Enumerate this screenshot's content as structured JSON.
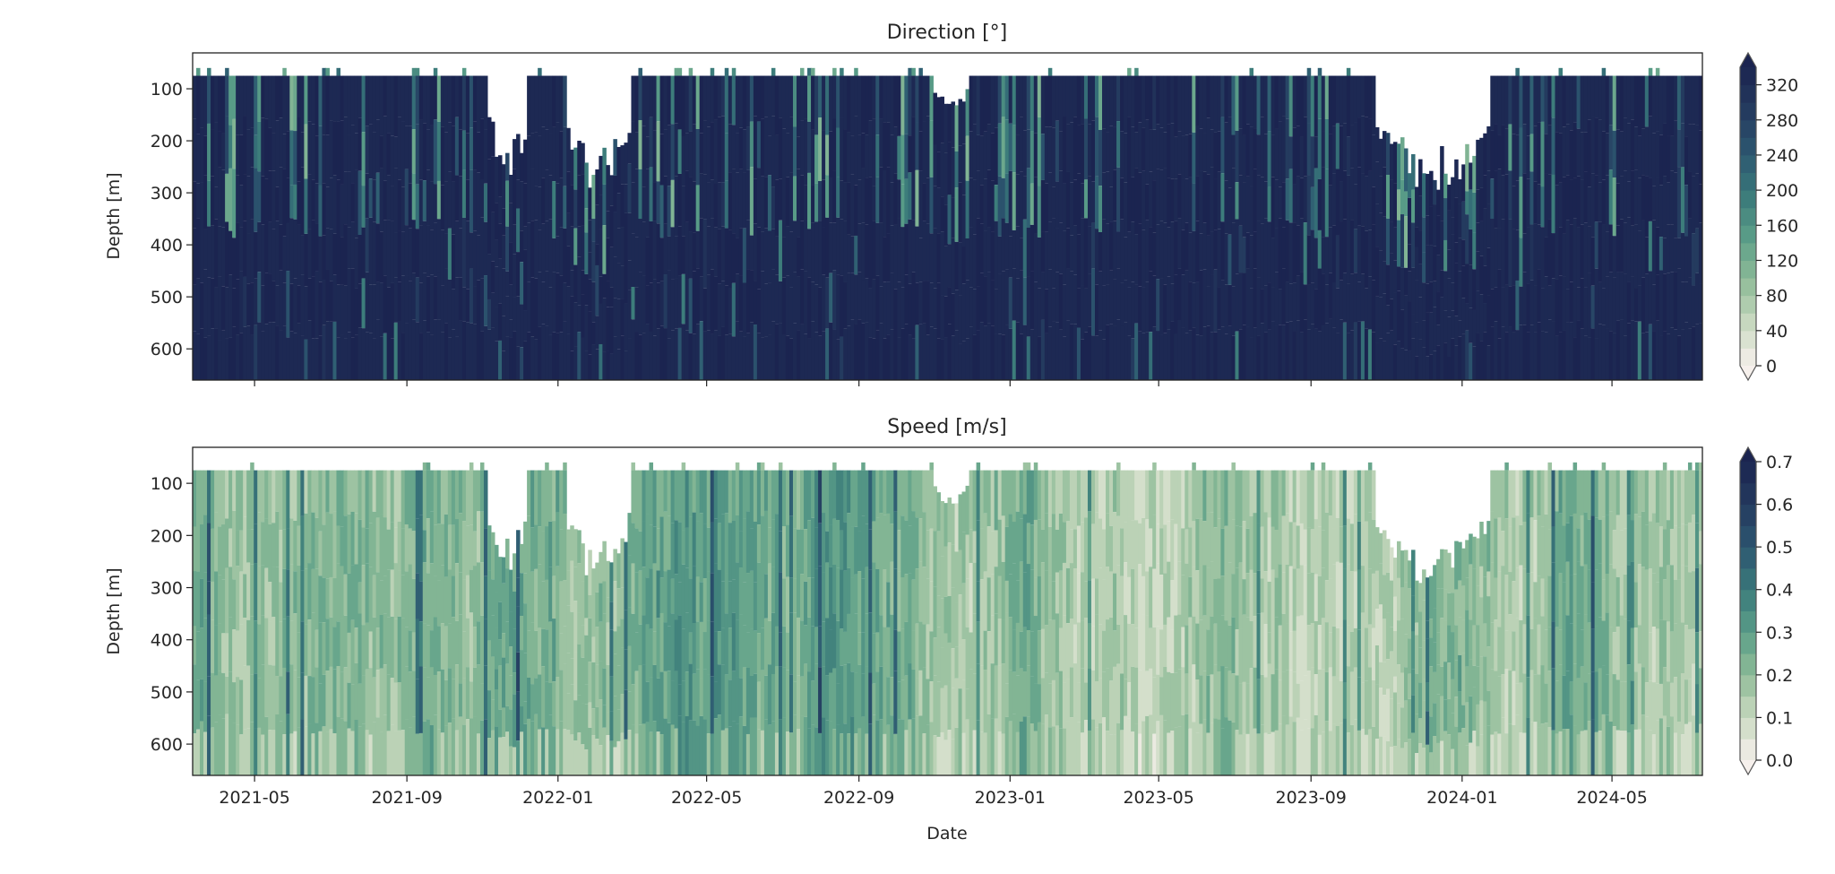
{
  "chart_data": [
    {
      "type": "heatmap",
      "title": "Direction [°]",
      "ylabel": "Depth [m]",
      "xlabel": "",
      "xlim": [
        "2021-03-12",
        "2024-07-13"
      ],
      "ylim": [
        660,
        31
      ],
      "y_inverted": true,
      "xticks": [
        "2021-05",
        "2021-09",
        "2022-01",
        "2022-05",
        "2022-09",
        "2023-01",
        "2023-05",
        "2023-09",
        "2024-01",
        "2024-05"
      ],
      "xtick_labels_shown": false,
      "yticks": [
        100,
        200,
        300,
        400,
        500,
        600
      ],
      "colorbar": {
        "ticks": [
          0,
          40,
          80,
          120,
          160,
          200,
          240,
          280,
          320
        ],
        "levels_min": 0,
        "levels_max": 340,
        "level_step": 20,
        "extend": "both",
        "colormap": [
          "#f6f0ec",
          "#c9d9c0",
          "#8fbc98",
          "#5b9e88",
          "#3a7a7a",
          "#2c5670",
          "#243a5e",
          "#1b2450"
        ]
      },
      "typical_value": 330,
      "data_top_depth": 75,
      "no_data_regions": [
        {
          "start": "2021-11-05",
          "end": "2021-12-08",
          "max_depth": 270
        },
        {
          "start": "2022-01-08",
          "end": "2022-02-28",
          "max_depth": 300
        },
        {
          "start": "2022-11-01",
          "end": "2022-11-28",
          "max_depth": 150
        },
        {
          "start": "2023-10-22",
          "end": "2024-01-25",
          "max_depth": 300
        }
      ]
    },
    {
      "type": "heatmap",
      "title": "Speed [m/s]",
      "ylabel": "Depth [m]",
      "xlabel": "Date",
      "xlim": [
        "2021-03-12",
        "2024-07-13"
      ],
      "ylim": [
        660,
        31
      ],
      "y_inverted": true,
      "xticks": [
        "2021-05",
        "2021-09",
        "2022-01",
        "2022-05",
        "2022-09",
        "2023-01",
        "2023-05",
        "2023-09",
        "2024-01",
        "2024-05"
      ],
      "yticks": [
        100,
        200,
        300,
        400,
        500,
        600
      ],
      "colorbar": {
        "ticks": [
          "0.0",
          "0.1",
          "0.2",
          "0.3",
          "0.4",
          "0.5",
          "0.6",
          "0.7"
        ],
        "levels_min": 0,
        "levels_max": 0.7,
        "level_step": 0.05,
        "extend": "both",
        "colormap": [
          "#f6f0ec",
          "#c9d9c0",
          "#8fbc98",
          "#5b9e88",
          "#3a7a7a",
          "#2c5670",
          "#243a5e",
          "#1b2450"
        ]
      },
      "typical_value_range": [
        0.1,
        0.45
      ],
      "data_top_depth": 75,
      "no_data_regions": [
        {
          "start": "2021-11-05",
          "end": "2021-12-08",
          "max_depth": 270
        },
        {
          "start": "2022-01-08",
          "end": "2022-02-28",
          "max_depth": 300
        },
        {
          "start": "2022-11-01",
          "end": "2022-11-28",
          "max_depth": 150
        },
        {
          "start": "2023-10-22",
          "end": "2024-01-25",
          "max_depth": 300
        }
      ]
    }
  ]
}
